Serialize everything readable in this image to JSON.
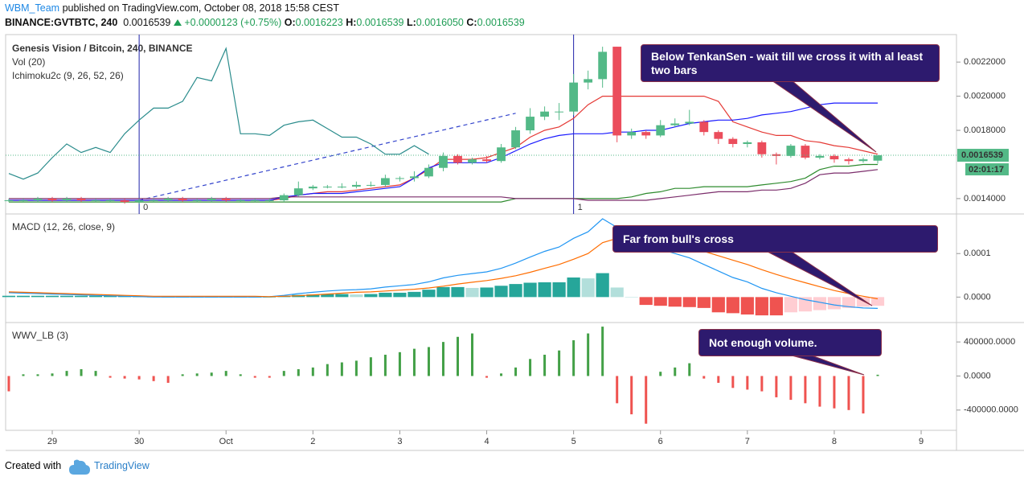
{
  "header": {
    "author": "WBM_Team",
    "published": "published on TradingView.com, October 08, 2018 15:58 CEST",
    "symbol": "BINANCE:GVTBTC, 240",
    "price": "0.0016539",
    "change": "+0.0000123 (+0.75%)",
    "ohlc": [
      {
        "label": "O:",
        "value": "0.0016223"
      },
      {
        "label": "H:",
        "value": "0.0016539"
      },
      {
        "label": "L:",
        "value": "0.0016050"
      },
      {
        "label": "C:",
        "value": "0.0016539"
      }
    ]
  },
  "chart_data": [
    {
      "type": "candlestick",
      "title": "Genesis Vision / Bitcoin, 240, BINANCE",
      "indicators": [
        "Vol (20)",
        "Ichimoku2c (9, 26, 52, 26)"
      ],
      "x": [
        0,
        1,
        2,
        3,
        4,
        5,
        6,
        7,
        8,
        9,
        10,
        11,
        12,
        13,
        14,
        15,
        16,
        17,
        18,
        19,
        20,
        21,
        22,
        23,
        24,
        25,
        26,
        27,
        28,
        29,
        30,
        31,
        32,
        33,
        34,
        35,
        36,
        37,
        38,
        39,
        40,
        41,
        42,
        43,
        44,
        45,
        46,
        47,
        48,
        49,
        50,
        51,
        52,
        53,
        54,
        55,
        56,
        57,
        58,
        59,
        60
      ],
      "xlim": [
        -0.22,
        65.44
      ],
      "xticks": [
        {
          "value": 3,
          "label": "29"
        },
        {
          "value": 9,
          "label": "30"
        },
        {
          "value": 15,
          "label": "Oct"
        },
        {
          "value": 21,
          "label": "2"
        },
        {
          "value": 27,
          "label": "3"
        },
        {
          "value": 33,
          "label": "4"
        },
        {
          "value": 39,
          "label": "5"
        },
        {
          "value": 45,
          "label": "6"
        },
        {
          "value": 51,
          "label": "7"
        },
        {
          "value": 57,
          "label": "8"
        },
        {
          "value": 63,
          "label": "9"
        }
      ],
      "open": [
        0.00139,
        0.00139,
        0.00139,
        0.0014,
        0.00139,
        0.0014,
        0.00139,
        0.00139,
        0.00139,
        0.00138,
        0.00139,
        0.00139,
        0.0014,
        0.00139,
        0.00139,
        0.0014,
        0.00139,
        0.00139,
        0.00139,
        0.00139,
        0.00142,
        0.00146,
        0.00147,
        0.00147,
        0.00147,
        0.00148,
        0.00148,
        0.00152,
        0.00152,
        0.00153,
        0.00158,
        0.00165,
        0.00161,
        0.00163,
        0.00162,
        0.0017,
        0.0018,
        0.00188,
        0.00191,
        0.00191,
        0.00208,
        0.0021,
        0.00229,
        0.00177,
        0.00179,
        0.00177,
        0.00183,
        0.00184,
        0.00185,
        0.00179,
        0.00175,
        0.00172,
        0.00173,
        0.00166,
        0.00165,
        0.00171,
        0.00164,
        0.00165,
        0.00163,
        0.00162,
        0.0016223
      ],
      "high": [
        0.0014,
        0.0014,
        0.00141,
        0.00141,
        0.00141,
        0.00141,
        0.0014,
        0.0014,
        0.0014,
        0.0014,
        0.0014,
        0.00141,
        0.00141,
        0.0014,
        0.00141,
        0.00141,
        0.0014,
        0.0014,
        0.0014,
        0.00143,
        0.0015,
        0.00148,
        0.00148,
        0.00149,
        0.0015,
        0.0015,
        0.00154,
        0.00153,
        0.00156,
        0.0016,
        0.00167,
        0.00166,
        0.00164,
        0.00165,
        0.00172,
        0.00182,
        0.00193,
        0.00194,
        0.00196,
        0.00213,
        0.00215,
        0.00229,
        0.00229,
        0.00181,
        0.0018,
        0.00186,
        0.00187,
        0.00192,
        0.00186,
        0.0018,
        0.00176,
        0.00174,
        0.00174,
        0.00167,
        0.00172,
        0.00172,
        0.00166,
        0.00166,
        0.00164,
        0.00164,
        0.0016539
      ],
      "low": [
        0.00138,
        0.00138,
        0.00138,
        0.00138,
        0.00138,
        0.00138,
        0.00138,
        0.00138,
        0.00137,
        0.00137,
        0.00138,
        0.00138,
        0.00138,
        0.00138,
        0.00138,
        0.00138,
        0.00138,
        0.00138,
        0.00138,
        0.00138,
        0.00141,
        0.00145,
        0.00146,
        0.00146,
        0.00146,
        0.00147,
        0.00147,
        0.0015,
        0.0015,
        0.00152,
        0.00156,
        0.0016,
        0.0016,
        0.00161,
        0.00161,
        0.00169,
        0.00178,
        0.00186,
        0.00186,
        0.00189,
        0.00204,
        0.00205,
        0.00173,
        0.00175,
        0.00175,
        0.00176,
        0.00182,
        0.00183,
        0.00177,
        0.00172,
        0.0017,
        0.0017,
        0.00164,
        0.0016,
        0.00164,
        0.00163,
        0.00163,
        0.00161,
        0.0016,
        0.00161,
        0.001605
      ],
      "close": [
        0.00139,
        0.00139,
        0.0014,
        0.00139,
        0.0014,
        0.00139,
        0.00139,
        0.00139,
        0.00138,
        0.00139,
        0.00139,
        0.0014,
        0.00139,
        0.00139,
        0.0014,
        0.00139,
        0.00139,
        0.00139,
        0.00139,
        0.00142,
        0.00146,
        0.00147,
        0.00147,
        0.00147,
        0.00148,
        0.00148,
        0.00152,
        0.00152,
        0.00153,
        0.00158,
        0.00165,
        0.00161,
        0.00163,
        0.00162,
        0.0017,
        0.0018,
        0.00188,
        0.00191,
        0.00191,
        0.00208,
        0.0021,
        0.00226,
        0.00177,
        0.00179,
        0.00177,
        0.00183,
        0.00184,
        0.00185,
        0.00179,
        0.00175,
        0.00172,
        0.00173,
        0.00166,
        0.00165,
        0.00171,
        0.00164,
        0.00165,
        0.00163,
        0.00162,
        0.00163,
        0.0016539
      ],
      "up_color": "#53b987",
      "down_color": "#eb4d5c",
      "series": [
        {
          "color": "#e53935",
          "values": [
            0.00139,
            0.00139,
            0.00139,
            0.00139,
            0.00139,
            0.00139,
            0.00139,
            0.00139,
            0.00139,
            0.00139,
            0.00139,
            0.00139,
            0.00139,
            0.00139,
            0.00139,
            0.00139,
            0.00139,
            0.00139,
            0.00139,
            0.0014,
            0.00142,
            0.00143,
            0.00144,
            0.00144,
            0.00145,
            0.00146,
            0.00147,
            0.00148,
            0.00152,
            0.00157,
            0.00163,
            0.00163,
            0.00163,
            0.00164,
            0.00167,
            0.0017,
            0.00176,
            0.0018,
            0.00182,
            0.00187,
            0.00195,
            0.002,
            0.002,
            0.002,
            0.002,
            0.002,
            0.002,
            0.002,
            0.002,
            0.00197,
            0.00185,
            0.00182,
            0.00179,
            0.00177,
            0.00177,
            0.00174,
            0.00173,
            0.00171,
            0.0017,
            0.00168,
            0.00166
          ]
        },
        {
          "color": "#1a1aff",
          "values": [
            0.00139,
            0.00139,
            0.00139,
            0.00139,
            0.00139,
            0.00139,
            0.00139,
            0.00139,
            0.00139,
            0.00139,
            0.00139,
            0.00139,
            0.00139,
            0.00139,
            0.00139,
            0.00139,
            0.00139,
            0.00139,
            0.00139,
            0.00141,
            0.00142,
            0.00143,
            0.00143,
            0.00143,
            0.00144,
            0.00145,
            0.00146,
            0.00147,
            0.00152,
            0.00158,
            0.00161,
            0.00161,
            0.00161,
            0.00161,
            0.00164,
            0.00168,
            0.00172,
            0.00175,
            0.00177,
            0.00178,
            0.00178,
            0.00178,
            0.00179,
            0.00179,
            0.0018,
            0.0018,
            0.00182,
            0.00184,
            0.00185,
            0.00186,
            0.00186,
            0.00187,
            0.00189,
            0.0019,
            0.00191,
            0.00193,
            0.00195,
            0.00196,
            0.00196,
            0.00196,
            0.00196
          ]
        },
        {
          "color": "#2e8b2e",
          "values": [
            0.00138,
            0.00138,
            0.00138,
            0.00138,
            0.00138,
            0.00138,
            0.00138,
            0.00138,
            0.00138,
            0.00138,
            0.00138,
            0.00138,
            0.00138,
            0.00138,
            0.00138,
            0.00138,
            0.00138,
            0.00138,
            0.00138,
            0.00138,
            0.00138,
            0.00138,
            0.00138,
            0.00138,
            0.00138,
            0.00138,
            0.00138,
            0.00138,
            0.00138,
            0.00138,
            0.00138,
            0.00138,
            0.00138,
            0.00138,
            0.00138,
            0.0014,
            0.0014,
            0.0014,
            0.0014,
            0.0014,
            0.0014,
            0.0014,
            0.0014,
            0.00141,
            0.00143,
            0.00144,
            0.00146,
            0.00146,
            0.00147,
            0.00147,
            0.00147,
            0.00147,
            0.00148,
            0.00149,
            0.0015,
            0.00152,
            0.00157,
            0.00159,
            0.00159,
            0.0016,
            0.0016
          ]
        },
        {
          "color": "#7b2d6b",
          "values": [
            0.0014,
            0.0014,
            0.0014,
            0.0014,
            0.0014,
            0.0014,
            0.0014,
            0.0014,
            0.0014,
            0.0014,
            0.0014,
            0.0014,
            0.0014,
            0.0014,
            0.0014,
            0.0014,
            0.0014,
            0.0014,
            0.0014,
            0.00141,
            0.00141,
            0.00141,
            0.00141,
            0.00141,
            0.00141,
            0.00141,
            0.00141,
            0.00141,
            0.00141,
            0.00141,
            0.00141,
            0.00141,
            0.00141,
            0.00141,
            0.00141,
            0.0014,
            0.0014,
            0.0014,
            0.0014,
            0.0014,
            0.00139,
            0.00139,
            0.00139,
            0.00139,
            0.00139,
            0.0014,
            0.00141,
            0.00142,
            0.00143,
            0.00144,
            0.00144,
            0.00144,
            0.00145,
            0.00145,
            0.00146,
            0.00149,
            0.00154,
            0.00155,
            0.00155,
            0.00156,
            0.00157
          ]
        },
        {
          "color": "#2a8c8c",
          "values": [
            0.001547,
            0.001514,
            0.00155,
            0.00164,
            0.00172,
            0.00167,
            0.0017,
            0.00167,
            0.00178,
            0.00186,
            0.00193,
            0.00193,
            0.00197,
            0.00211,
            0.00209,
            0.00228,
            0.00178,
            0.00178,
            0.00177,
            0.00183,
            0.00185,
            0.00186,
            0.00181,
            0.00176,
            0.00176,
            0.00172,
            0.00166,
            0.00166,
            0.00171,
            0.00166,
            null,
            null,
            null,
            null,
            null,
            null,
            null,
            null,
            null,
            null,
            null,
            null,
            null,
            null,
            null,
            null,
            null,
            null,
            null,
            null,
            null,
            null,
            null,
            null,
            null,
            null,
            null,
            null,
            null,
            null,
            null
          ]
        }
      ],
      "trend_line": {
        "x": [
          9,
          35
        ],
        "values": [
          0.00139,
          0.0019
        ],
        "color": "#3344cc"
      },
      "markers": [
        {
          "x": 9,
          "label": "0"
        },
        {
          "x": 39,
          "label": "1"
        }
      ],
      "last": {
        "value": 0.0016539,
        "label": "0.0016539",
        "countdown": "02:01:17"
      },
      "ylim": [
        0.00131,
        0.002361
      ],
      "yticks": [
        {
          "value": 0.0014,
          "label": "0.0014000"
        },
        {
          "value": 0.0018,
          "label": "0.0018000"
        },
        {
          "value": 0.002,
          "label": "0.0020000"
        },
        {
          "value": 0.0022,
          "label": "0.0022000"
        }
      ]
    },
    {
      "type": "macd",
      "title": "MACD (12, 26, close, 9)",
      "histogram": [
        3e-06,
        3e-06,
        3e-06,
        3e-06,
        3e-06,
        3e-06,
        3e-06,
        3e-06,
        3e-06,
        3e-06,
        0,
        0,
        0,
        0,
        0,
        0,
        0,
        0,
        0,
        3e-06,
        5e-06,
        6e-06,
        7e-06,
        7e-06,
        6e-06,
        7e-06,
        1e-05,
        1e-05,
        1.2e-05,
        1.7e-05,
        2.3e-05,
        2.3e-05,
        2.1e-05,
        2.2e-05,
        2.6e-05,
        3e-05,
        3.3e-05,
        3.4e-05,
        3.4e-05,
        4.5e-05,
        4.3e-05,
        5.5e-05,
        2.2e-05,
        0,
        -1.8e-05,
        -2e-05,
        -2.2e-05,
        -2.3e-05,
        -2.5e-05,
        -3.5e-05,
        -3.7e-05,
        -4e-05,
        -4.2e-05,
        -4.2e-05,
        -3.5e-05,
        -3.3e-05,
        -3e-05,
        -2.8e-05,
        -2.5e-05,
        -2.2e-05,
        -2e-05
      ],
      "histogram_colors": [
        "#26a69a",
        "#b2dfdb",
        "#ef5350",
        "#ffcdd2"
      ],
      "series": [
        {
          "color": "#2196f3",
          "values": [
            1e-05,
            9e-06,
            8e-06,
            7e-06,
            6e-06,
            5e-06,
            4e-06,
            3e-06,
            2e-06,
            1e-06,
            0,
            0,
            0,
            0,
            0,
            0,
            0,
            0,
            1e-06,
            4e-06,
            8e-06,
            1.1e-05,
            1.4e-05,
            1.6e-05,
            1.7e-05,
            1.9e-05,
            2.3e-05,
            2.6e-05,
            2.9e-05,
            3.5e-05,
            4.4e-05,
            5e-05,
            5.4e-05,
            5.8e-05,
            6.6e-05,
            7.8e-05,
            9.2e-05,
            0.000105,
            0.000115,
            0.000135,
            0.00015,
            0.00018,
            0.00016,
            0.00014,
            0.00012,
            0.00011,
            0.0001,
            9e-05,
            7.5e-05,
            6e-05,
            4.5e-05,
            3.5e-05,
            2e-05,
            1e-05,
            2e-06,
            -6e-06,
            -1.2e-05,
            -1.8e-05,
            -2.2e-05,
            -2.5e-05,
            -2.6e-05
          ]
        },
        {
          "color": "#ff6d00",
          "values": [
            1.2e-05,
            1.1e-05,
            1e-05,
            9e-06,
            8e-06,
            7e-06,
            6e-06,
            5e-06,
            4e-06,
            3e-06,
            2e-06,
            2e-06,
            2e-06,
            2e-06,
            2e-06,
            2e-06,
            2e-06,
            2e-06,
            1e-06,
            2e-06,
            3e-06,
            5e-06,
            7e-06,
            9e-06,
            1.1e-05,
            1.2e-05,
            1.4e-05,
            1.6e-05,
            1.8e-05,
            2.1e-05,
            2.5e-05,
            3e-05,
            3.4e-05,
            3.8e-05,
            4.3e-05,
            4.9e-05,
            5.7e-05,
            6.6e-05,
            7.5e-05,
            8.7e-05,
            0.0001,
            0.000125,
            0.000135,
            0.000135,
            0.000133,
            0.000128,
            0.000122,
            0.000115,
            0.000105,
            9.5e-05,
            8.5e-05,
            7.5e-05,
            6.3e-05,
            5.2e-05,
            4.2e-05,
            3.3e-05,
            2.4e-05,
            1.5e-05,
            8e-06,
            2e-06,
            -4e-06
          ]
        }
      ],
      "ylim": [
        -5.85e-05,
        0.000191
      ],
      "yticks": [
        {
          "value": 0.0001,
          "label": "0.0001"
        },
        {
          "value": 0,
          "label": "0.0000"
        }
      ]
    },
    {
      "type": "bar",
      "title": "WWV_LB (3)",
      "values": [
        -180000,
        20000,
        20000,
        30000,
        60000,
        80000,
        60000,
        -20000,
        -30000,
        -40000,
        -60000,
        -80000,
        20000,
        30000,
        40000,
        60000,
        20000,
        -20000,
        -20000,
        60000,
        80000,
        100000,
        140000,
        160000,
        180000,
        220000,
        250000,
        280000,
        320000,
        340000,
        400000,
        460000,
        500000,
        -20000,
        30000,
        100000,
        200000,
        250000,
        300000,
        420000,
        500000,
        580000,
        -320000,
        -450000,
        -560000,
        50000,
        100000,
        150000,
        -30000,
        -80000,
        -140000,
        -160000,
        -180000,
        -250000,
        -280000,
        -320000,
        -360000,
        -380000,
        -400000,
        -440000,
        15000
      ],
      "up_color": "#43a047",
      "down_color": "#ef5350",
      "ylim": [
        -638000,
        628000
      ],
      "yticks": [
        {
          "value": 400000,
          "label": "400000.0000"
        },
        {
          "value": 0,
          "label": "0.0000"
        },
        {
          "value": -400000,
          "label": "-400000.0000"
        }
      ]
    }
  ],
  "callouts": [
    "Below TenkanSen - wait till we cross it with al least two bars",
    "Far from bull's cross",
    "Not enough volume."
  ],
  "footer": {
    "created": "Created with",
    "brand": "TradingView"
  }
}
